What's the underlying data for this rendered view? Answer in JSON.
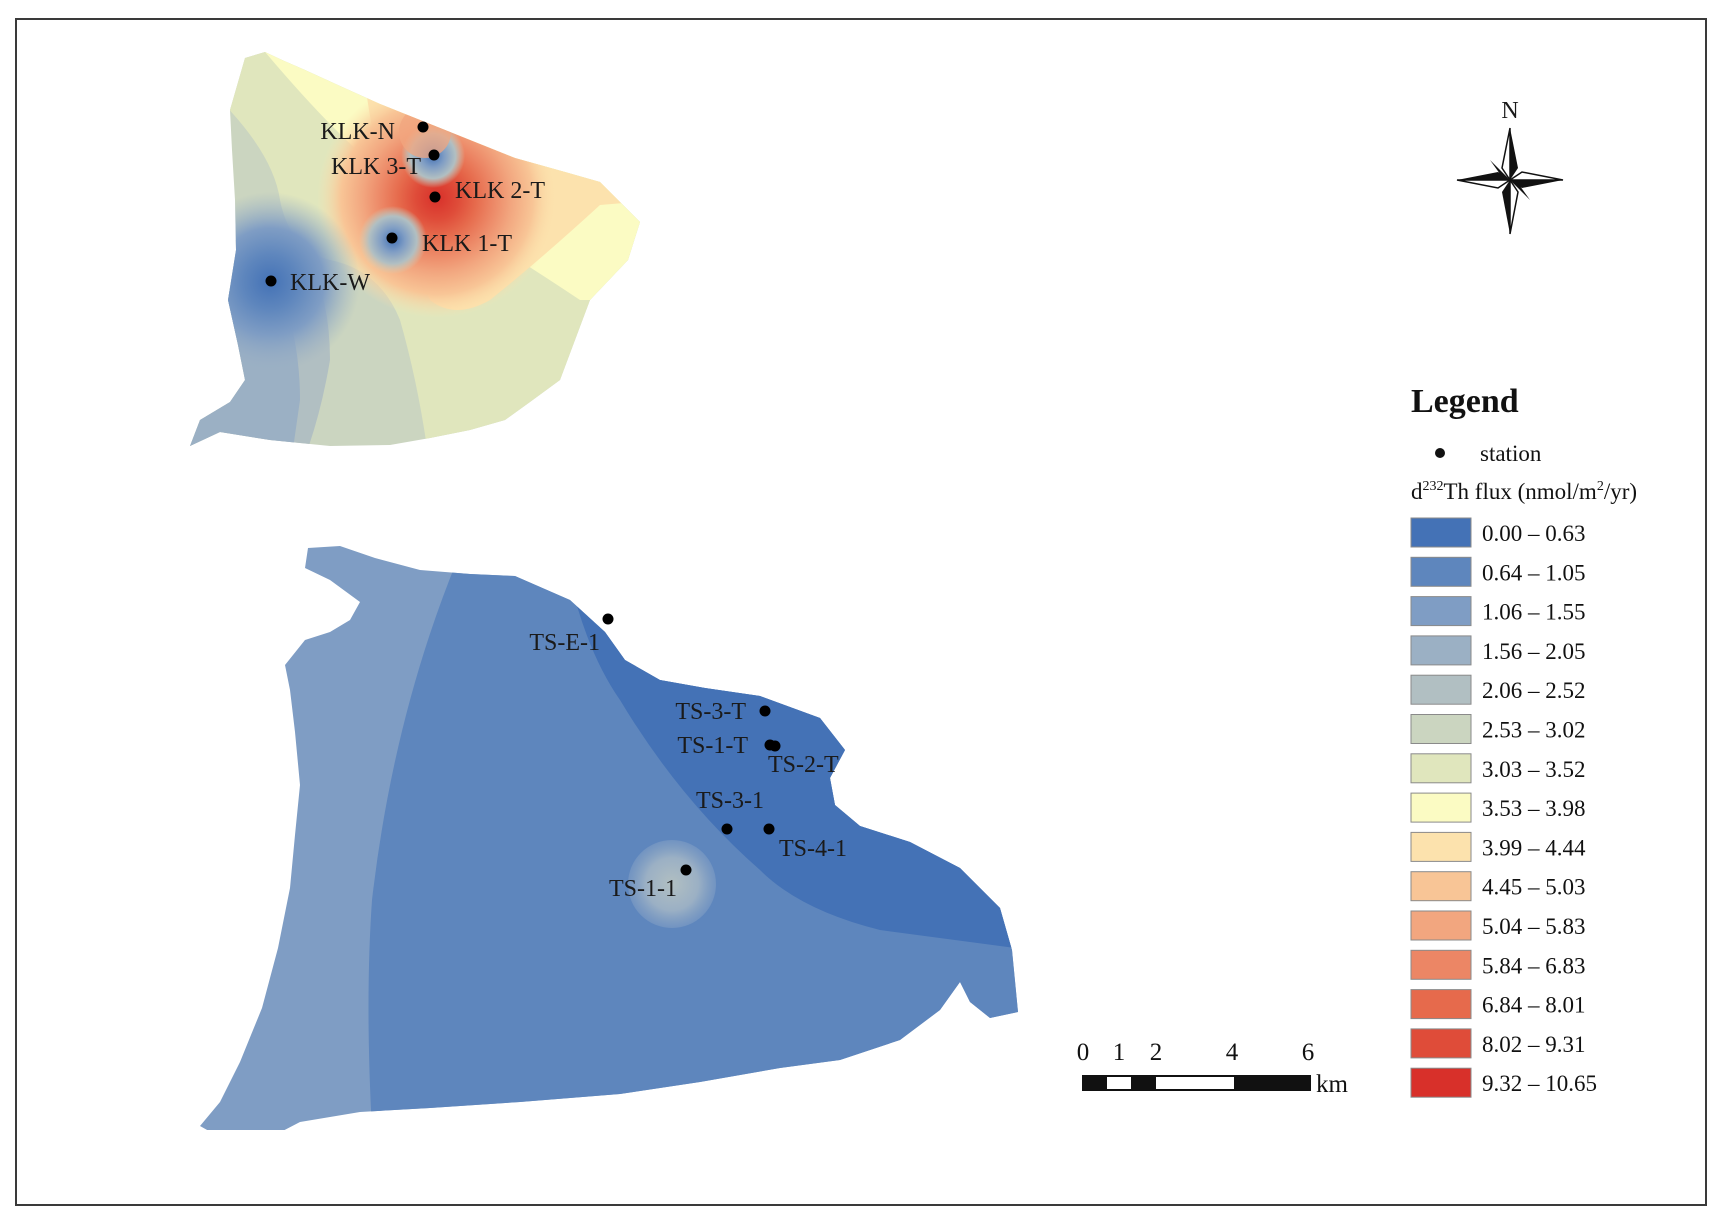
{
  "legend": {
    "title": "Legend",
    "station_label": "station",
    "flux_prefix": "d",
    "flux_superscript": "232",
    "flux_middle": "Th flux (nmol/m",
    "flux_exponent": "2",
    "flux_suffix": "/yr)",
    "classes": [
      {
        "range": "0.00 – 0.63",
        "color": "#4472b6"
      },
      {
        "range": "0.64 – 1.05",
        "color": "#5e86bd"
      },
      {
        "range": "1.06 – 1.55",
        "color": "#7f9dc4"
      },
      {
        "range": "1.56 – 2.05",
        "color": "#9bb0c4"
      },
      {
        "range": "2.06 – 2.52",
        "color": "#b1bfc2"
      },
      {
        "range": "2.53 – 3.02",
        "color": "#cbd5c0"
      },
      {
        "range": "3.03 – 3.52",
        "color": "#e0e6bd"
      },
      {
        "range": "3.53 – 3.98",
        "color": "#fbfbc3"
      },
      {
        "range": "3.99 – 4.44",
        "color": "#fce2ad"
      },
      {
        "range": "4.45 – 5.03",
        "color": "#f8c596"
      },
      {
        "range": "5.04 – 5.83",
        "color": "#f2a67f"
      },
      {
        "range": "5.84 – 6.83",
        "color": "#ec8665"
      },
      {
        "range": "6.84 – 8.01",
        "color": "#e66a4c"
      },
      {
        "range": "8.02 – 9.31",
        "color": "#df4c39"
      },
      {
        "range": "9.32 – 10.65",
        "color": "#d8302a"
      }
    ]
  },
  "north_arrow": {
    "label": "N"
  },
  "scale_bar": {
    "ticks": [
      "0",
      "1",
      "2",
      "4",
      "6"
    ],
    "unit": "km"
  },
  "stations": [
    {
      "name": "KLK-N"
    },
    {
      "name": "KLK 3-T"
    },
    {
      "name": "KLK 2-T"
    },
    {
      "name": "KLK 1-T"
    },
    {
      "name": "KLK-W"
    },
    {
      "name": "TS-E-1"
    },
    {
      "name": "TS-3-T"
    },
    {
      "name": "TS-1-T"
    },
    {
      "name": "TS-2-T"
    },
    {
      "name": "TS-3-1"
    },
    {
      "name": "TS-4-1"
    },
    {
      "name": "TS-1-1"
    }
  ]
}
